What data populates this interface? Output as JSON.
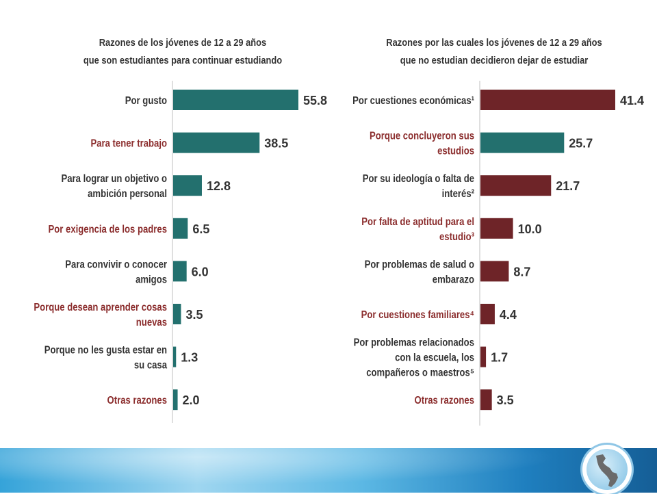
{
  "chart_data": [
    {
      "type": "bar",
      "orientation": "horizontal",
      "title_lines": [
        "Razones de los jóvenes de 12 a 29 años",
        "que son estudiantes para continuar estudiando"
      ],
      "categories": [
        [
          "Por gusto"
        ],
        [
          "Para tener trabajo"
        ],
        [
          "Para lograr un objetivo o",
          "ambición personal"
        ],
        [
          "Por exigencia de los padres"
        ],
        [
          "Para convivir o conocer",
          "amigos"
        ],
        [
          "Porque desean aprender cosas",
          "nuevas"
        ],
        [
          "Porque no les gusta estar en",
          "su casa"
        ],
        [
          "Otras razones"
        ]
      ],
      "values": [
        55.8,
        38.5,
        12.8,
        6.5,
        6.0,
        3.5,
        1.3,
        2.0
      ],
      "value_labels": [
        "55.8",
        "38.5",
        "12.8",
        "6.5",
        "6.0",
        "3.5",
        "1.3",
        "2.0"
      ],
      "label_colors": [
        "#333333",
        "#8b2d2d",
        "#333333",
        "#8b2d2d",
        "#333333",
        "#8b2d2d",
        "#333333",
        "#8b2d2d"
      ],
      "bar_color": "#23706e",
      "xlim": [
        0,
        55.8
      ]
    },
    {
      "type": "bar",
      "orientation": "horizontal",
      "title_lines": [
        "Razones por las cuales los jóvenes de 12 a 29 años",
        "que no estudian decidieron dejar de estudiar"
      ],
      "categories": [
        [
          "Por cuestiones económicas¹"
        ],
        [
          "Porque concluyeron sus",
          "estudios"
        ],
        [
          "Por su ideología  o falta de",
          "interés²"
        ],
        [
          "Por falta de aptitud para el",
          "estudio³"
        ],
        [
          "Por problemas de salud o",
          "embarazo"
        ],
        [
          "Por cuestiones familiares⁴"
        ],
        [
          "Por problemas relacionados",
          "con la escuela, los",
          "compañeros o maestros⁵"
        ],
        [
          "Otras razones"
        ]
      ],
      "values": [
        41.4,
        25.7,
        21.7,
        10.0,
        8.7,
        4.4,
        1.7,
        3.5
      ],
      "value_labels": [
        "41.4",
        "25.7",
        "21.7",
        "10.0",
        "8.7",
        "4.4",
        "1.7",
        "3.5"
      ],
      "label_colors": [
        "#333333",
        "#8b2d2d",
        "#333333",
        "#8b2d2d",
        "#333333",
        "#8b2d2d",
        "#333333",
        "#8b2d2d"
      ],
      "bar_colors": [
        "#6e2428",
        "#23706e",
        "#6e2428",
        "#6e2428",
        "#6e2428",
        "#6e2428",
        "#6e2428",
        "#6e2428"
      ],
      "xlim": [
        0,
        41.4
      ]
    }
  ]
}
